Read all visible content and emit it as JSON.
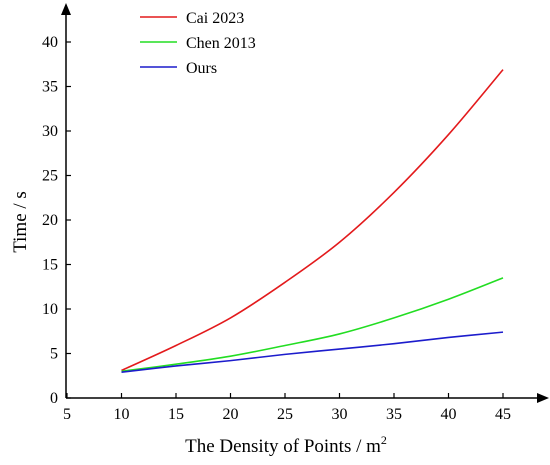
{
  "chart_data": {
    "type": "line",
    "title": "",
    "xlabel": "The Density of Points / m",
    "xlabel_superscript": "2",
    "ylabel": "Time / s",
    "xlim": [
      5,
      50
    ],
    "ylim": [
      0,
      40
    ],
    "xticks": [
      5,
      10,
      15,
      20,
      25,
      30,
      35,
      40,
      45
    ],
    "yticks": [
      0,
      5,
      10,
      15,
      20,
      25,
      30,
      35,
      40
    ],
    "grid": false,
    "legend_position": "top-left",
    "x": [
      10,
      15,
      20,
      25,
      30,
      35,
      40,
      45
    ],
    "series": [
      {
        "name": "Cai 2023",
        "color": "#e31a1c",
        "values": [
          3.1,
          5.9,
          9.0,
          13.0,
          17.5,
          23.1,
          29.6,
          36.9
        ]
      },
      {
        "name": "Chen 2013",
        "color": "#22dd22",
        "values": [
          3.0,
          3.8,
          4.7,
          5.9,
          7.2,
          9.0,
          11.1,
          13.5
        ]
      },
      {
        "name": "Ours",
        "color": "#1c1ccc",
        "values": [
          2.9,
          3.6,
          4.2,
          4.9,
          5.5,
          6.1,
          6.8,
          7.4
        ]
      }
    ]
  }
}
